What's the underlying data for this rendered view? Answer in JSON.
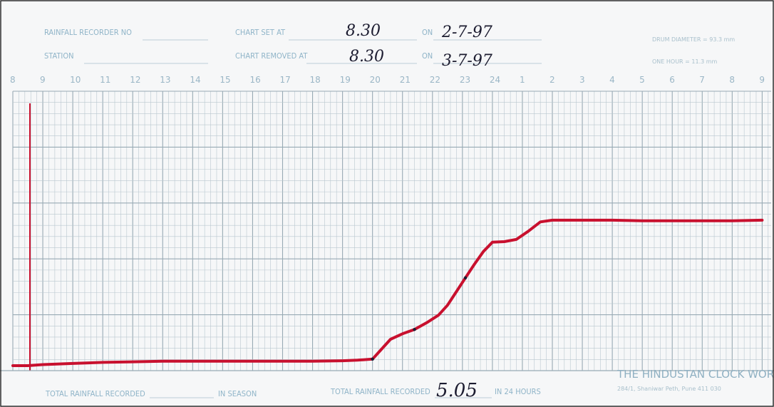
{
  "header": {
    "recorder_no_label": "RAINFALL RECORDER NO",
    "station_label": "STATION",
    "chart_set_label": "CHART SET AT",
    "chart_removed_label": "CHART REMOVED AT",
    "on_label": "ON",
    "chart_set_time": "8.30",
    "chart_set_date": "2-7-97",
    "chart_removed_time": "8.30",
    "chart_removed_date": "3-7-97",
    "drum_diameter": "DRUM DIAMETER = 93.3 mm",
    "one_hour": "ONE HOUR = 11.3 mm"
  },
  "footer": {
    "season_label": "TOTAL RAINFALL RECORDED",
    "season_suffix": "IN SEASON",
    "daily_label": "TOTAL RAINFALL RECORDED",
    "daily_value": "5.05",
    "daily_suffix": "IN 24 HOURS",
    "brand": "THE HINDUSTAN CLOCK WORKS",
    "brand_address": "284/1, Shaniwar Peth, Pune 411 030"
  },
  "colors": {
    "trace": "#c8102e",
    "grid": "#b9c7cf",
    "ink": "#1c1c30"
  },
  "chart_data": {
    "type": "line",
    "x_tick_labels": [
      "8",
      "9",
      "10",
      "11",
      "12",
      "13",
      "14",
      "15",
      "16",
      "17",
      "18",
      "19",
      "20",
      "21",
      "22",
      "23",
      "24",
      "1",
      "2",
      "3",
      "4",
      "5",
      "6",
      "7",
      "8",
      "9"
    ],
    "x": [
      8,
      8.5,
      9,
      10,
      11,
      12,
      13,
      14,
      15,
      16,
      17,
      18,
      19,
      19.5,
      20,
      20.3,
      20.6,
      21,
      21.4,
      21.8,
      22.2,
      22.5,
      22.8,
      23.1,
      23.4,
      23.7,
      24.0,
      24.4,
      24.8,
      25.2,
      25.6,
      26,
      27,
      28,
      29,
      30,
      31,
      32,
      33
    ],
    "series": [
      {
        "values": [
          0.0,
          0.0,
          0.02,
          0.04,
          0.06,
          0.07,
          0.08,
          0.08,
          0.08,
          0.08,
          0.08,
          0.08,
          0.09,
          0.1,
          0.12,
          0.3,
          0.48,
          0.58,
          0.66,
          0.78,
          0.92,
          1.1,
          1.35,
          1.6,
          1.85,
          2.08,
          2.25,
          2.26,
          2.3,
          2.45,
          2.62,
          2.65,
          2.65,
          2.65,
          2.64,
          2.64,
          2.64,
          2.64,
          2.65
        ]
      }
    ],
    "grid": true
  }
}
